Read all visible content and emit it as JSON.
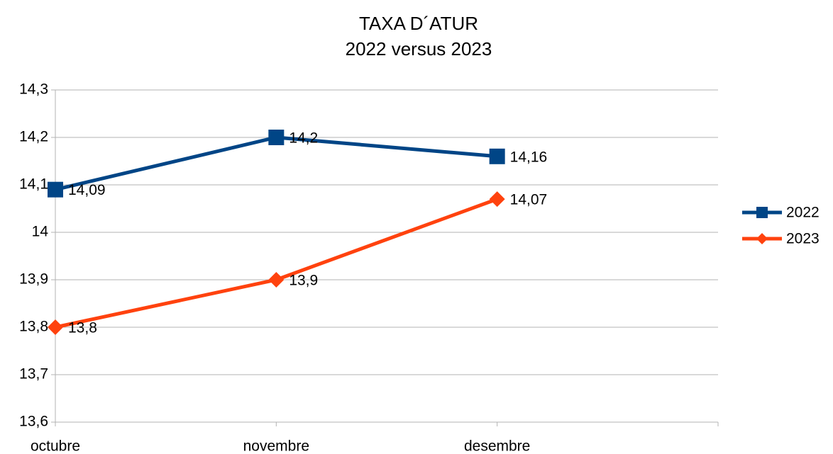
{
  "chart_data": {
    "type": "line",
    "title": "TAXA D´ATUR",
    "subtitle": "2022 versus 2023",
    "categories": [
      "octubre",
      "novembre",
      "desembre",
      null
    ],
    "series": [
      {
        "name": "2022",
        "color": "#004586",
        "marker": "square",
        "values": [
          14.09,
          14.2,
          14.16,
          null
        ],
        "value_labels": [
          "14,09",
          "14,2",
          "14,16",
          null
        ]
      },
      {
        "name": "2023",
        "color": "#ff420e",
        "marker": "diamond",
        "values": [
          13.8,
          13.9,
          14.07,
          null
        ],
        "value_labels": [
          "13,8",
          "13,9",
          "14,07",
          null
        ]
      }
    ],
    "ylim": [
      13.6,
      14.3
    ],
    "yticks": [
      {
        "value": 13.6,
        "label": "13,6"
      },
      {
        "value": 13.7,
        "label": "13,7"
      },
      {
        "value": 13.8,
        "label": "13,8"
      },
      {
        "value": 13.9,
        "label": "13,9"
      },
      14,
      {
        "value": 14.1,
        "label": "14,1"
      },
      {
        "value": 14.2,
        "label": "14,2"
      },
      {
        "value": 14.3,
        "label": "14,3"
      }
    ],
    "grid": true,
    "legend": "right"
  }
}
